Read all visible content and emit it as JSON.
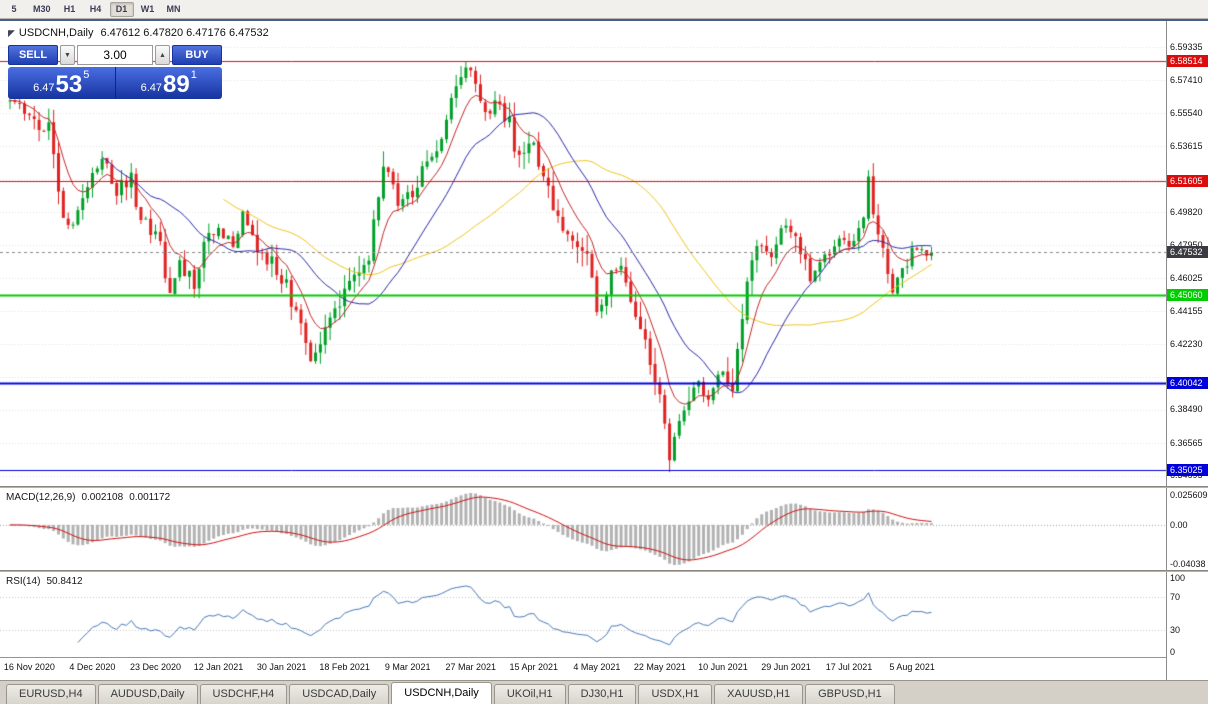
{
  "toolbar": {
    "timeframes": [
      {
        "label": "5",
        "active": false
      },
      {
        "label": "M30",
        "active": false
      },
      {
        "label": "H1",
        "active": false
      },
      {
        "label": "H4",
        "active": false
      },
      {
        "label": "D1",
        "active": true
      },
      {
        "label": "W1",
        "active": false
      },
      {
        "label": "MN",
        "active": false
      }
    ]
  },
  "icons": {
    "chart_corner": "◤",
    "spinner_up": "▲",
    "spinner_down": "▼"
  },
  "chart": {
    "header": {
      "symbol": "USDCNH,Daily",
      "ohlc": "6.47612 6.47820 6.47176 6.47532"
    },
    "price_scale": {
      "labels": [
        "6.59335",
        "6.57410",
        "6.55540",
        "6.53615",
        "6.49820",
        "6.47950",
        "6.46025",
        "6.44155",
        "6.42230",
        "6.38490",
        "6.36565",
        "6.34695"
      ]
    },
    "current_price": {
      "price": 6.47532,
      "label": "6.47532",
      "badge_color": "#3a3a42"
    }
  },
  "trade_panel": {
    "sell_label": "SELL",
    "buy_label": "BUY",
    "volume": "3.00",
    "sell_price_small": "6.47",
    "sell_price_big": "53",
    "sell_price_sup": "5",
    "buy_price_small": "6.47",
    "buy_price_big": "89",
    "buy_price_sup": "1"
  },
  "macd": {
    "label": "MACD(12,26,9)",
    "value_main": "0.002108",
    "value_signal": "0.001172",
    "scale_top": "0.025609",
    "scale_zero": "0.00",
    "scale_bottom": "-0.04038"
  },
  "rsi": {
    "label": "RSI(14)",
    "value": "50.8412",
    "scale": [
      "100",
      "70",
      "30",
      "0"
    ]
  },
  "time_axis": {
    "dates": [
      "16 Nov 2020",
      "4 Dec 2020",
      "23 Dec 2020",
      "12 Jan 2021",
      "30 Jan 2021",
      "18 Feb 2021",
      "9 Mar 2021",
      "27 Mar 2021",
      "15 Apr 2021",
      "4 May 2021",
      "22 May 2021",
      "10 Jun 2021",
      "29 Jun 2021",
      "17 Jul 2021",
      "5 Aug 2021"
    ]
  },
  "tabs": [
    {
      "label": "EURUSD,H4",
      "active": false
    },
    {
      "label": "AUDUSD,Daily",
      "active": false
    },
    {
      "label": "USDCHF,H4",
      "active": false
    },
    {
      "label": "USDCAD,Daily",
      "active": false
    },
    {
      "label": "USDCNH,Daily",
      "active": true
    },
    {
      "label": "UKOil,H1",
      "active": false
    },
    {
      "label": "DJ30,H1",
      "active": false
    },
    {
      "label": "USDX,H1",
      "active": false
    },
    {
      "label": "XAUUSD,H1",
      "active": false
    },
    {
      "label": "GBPUSD,H1",
      "active": false
    }
  ],
  "chart_data": {
    "type": "candlestick",
    "symbol": "USDCNH",
    "period": "Daily",
    "bars": 191,
    "price_axis_range": [
      6.3409,
      6.6077
    ],
    "ohlc_current": {
      "open": 6.47612,
      "high": 6.4782,
      "low": 6.47176,
      "close": 6.47532
    },
    "close_waypoints": [
      [
        0,
        6.562
      ],
      [
        4,
        6.555
      ],
      [
        8,
        6.545
      ],
      [
        11,
        6.5
      ],
      [
        13,
        6.49
      ],
      [
        16,
        6.515
      ],
      [
        19,
        6.53
      ],
      [
        22,
        6.51
      ],
      [
        25,
        6.52
      ],
      [
        27,
        6.492
      ],
      [
        30,
        6.49
      ],
      [
        33,
        6.452
      ],
      [
        35,
        6.468
      ],
      [
        38,
        6.458
      ],
      [
        40,
        6.478
      ],
      [
        43,
        6.49
      ],
      [
        46,
        6.478
      ],
      [
        48,
        6.497
      ],
      [
        51,
        6.478
      ],
      [
        54,
        6.47
      ],
      [
        57,
        6.455
      ],
      [
        59,
        6.438
      ],
      [
        62,
        6.413
      ],
      [
        64,
        6.425
      ],
      [
        67,
        6.445
      ],
      [
        69,
        6.452
      ],
      [
        72,
        6.462
      ],
      [
        74,
        6.475
      ],
      [
        77,
        6.53
      ],
      [
        78,
        6.525
      ],
      [
        80,
        6.5
      ],
      [
        82,
        6.508
      ],
      [
        85,
        6.52
      ],
      [
        88,
        6.535
      ],
      [
        90,
        6.55
      ],
      [
        92,
        6.572
      ],
      [
        94,
        6.583
      ],
      [
        96,
        6.568
      ],
      [
        98,
        6.552
      ],
      [
        100,
        6.565
      ],
      [
        103,
        6.548
      ],
      [
        105,
        6.53
      ],
      [
        108,
        6.535
      ],
      [
        109,
        6.52
      ],
      [
        111,
        6.51
      ],
      [
        114,
        6.49
      ],
      [
        116,
        6.478
      ],
      [
        119,
        6.472
      ],
      [
        121,
        6.44
      ],
      [
        124,
        6.462
      ],
      [
        126,
        6.47
      ],
      [
        128,
        6.445
      ],
      [
        131,
        6.425
      ],
      [
        133,
        6.405
      ],
      [
        135,
        6.38
      ],
      [
        136,
        6.36
      ],
      [
        138,
        6.375
      ],
      [
        140,
        6.392
      ],
      [
        142,
        6.4
      ],
      [
        144,
        6.39
      ],
      [
        146,
        6.405
      ],
      [
        147,
        6.41
      ],
      [
        149,
        6.4
      ],
      [
        150,
        6.42
      ],
      [
        152,
        6.455
      ],
      [
        153,
        6.475
      ],
      [
        155,
        6.483
      ],
      [
        157,
        6.472
      ],
      [
        159,
        6.488
      ],
      [
        161,
        6.49
      ],
      [
        163,
        6.478
      ],
      [
        165,
        6.46
      ],
      [
        167,
        6.468
      ],
      [
        170,
        6.48
      ],
      [
        172,
        6.482
      ],
      [
        174,
        6.478
      ],
      [
        176,
        6.497
      ],
      [
        177,
        6.518
      ],
      [
        179,
        6.487
      ],
      [
        181,
        6.465
      ],
      [
        182,
        6.455
      ],
      [
        184,
        6.468
      ],
      [
        186,
        6.475
      ],
      [
        187,
        6.478
      ],
      [
        189,
        6.473
      ],
      [
        190,
        6.47532
      ]
    ],
    "moving_averages": [
      {
        "type": "sma",
        "period": 45,
        "color": "#edc51e"
      },
      {
        "type": "sma",
        "period": 20,
        "color": "#2828a8"
      },
      {
        "type": "ema",
        "period": 8,
        "color": "#c02828"
      }
    ],
    "horizontal_levels": [
      {
        "price": 6.58514,
        "label": "6.58514",
        "color": "#dd0c0c",
        "width": 1
      },
      {
        "price": 6.51605,
        "label": "6.51605",
        "color": "#dd0c0c",
        "width": 1
      },
      {
        "price": 6.4506,
        "label": "6.45060",
        "color": "#00cc00",
        "width": 2
      },
      {
        "price": 6.40042,
        "label": "6.40042",
        "color": "#0000dd",
        "width": 2
      },
      {
        "price": 6.35025,
        "label": "6.35025",
        "color": "#0000dd",
        "width": 1
      }
    ],
    "macd": {
      "params": [
        12,
        26,
        9
      ],
      "current_main": 0.002108,
      "current_signal": 0.001172,
      "scale": [
        0.025609,
        0.0,
        -0.04038
      ]
    },
    "rsi": {
      "period": 14,
      "current": 50.8412,
      "levels": [
        70,
        30
      ]
    },
    "colors": {
      "up": "#00a028",
      "down": "#e02222",
      "grid": "#e2e2e2",
      "macd_hist": "#b2b2b2",
      "macd_signal": "#cc1111",
      "rsi_line": "#4878b8"
    }
  }
}
